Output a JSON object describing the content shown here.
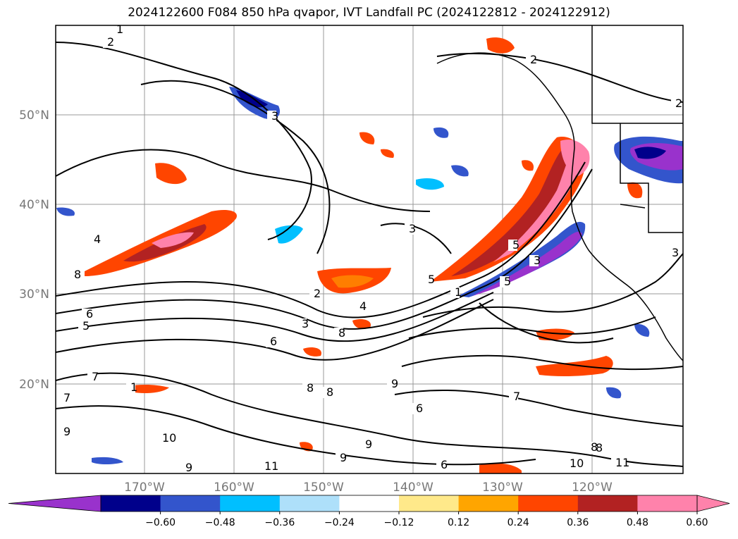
{
  "title": "2024122600 F084 850 hPa qvapor, IVT Landfall PC (2024122812 - 2024122912)",
  "lat_labels": [
    "50°N",
    "40°N",
    "30°N",
    "20°N"
  ],
  "lon_labels": [
    "170°W",
    "160°W",
    "150°W",
    "140°W",
    "130°W",
    "120°W"
  ],
  "colorbar": {
    "ticks": [
      "−0.60",
      "−0.48",
      "−0.36",
      "−0.24",
      "−0.12",
      "0.12",
      "0.24",
      "0.36",
      "0.48",
      "0.60"
    ],
    "colors": [
      "#9932cc",
      "#00008b",
      "#3355cc",
      "#00bfff",
      "#aee0fa",
      "#ffffff",
      "#ffe98a",
      "#ffa500",
      "#ff4500",
      "#b22222",
      "#ff82ab",
      "#ff82ab"
    ]
  },
  "contour_labels": [
    "1",
    "2",
    "2",
    "2",
    "2",
    "3",
    "3",
    "3",
    "3",
    "3",
    "4",
    "4",
    "5",
    "5",
    "5",
    "5",
    "6",
    "6",
    "6",
    "6",
    "7",
    "7",
    "7",
    "8",
    "8",
    "8",
    "8",
    "8",
    "9",
    "9",
    "9",
    "9",
    "10",
    "10",
    "11",
    "11",
    "8",
    "9",
    "1",
    "1"
  ]
}
